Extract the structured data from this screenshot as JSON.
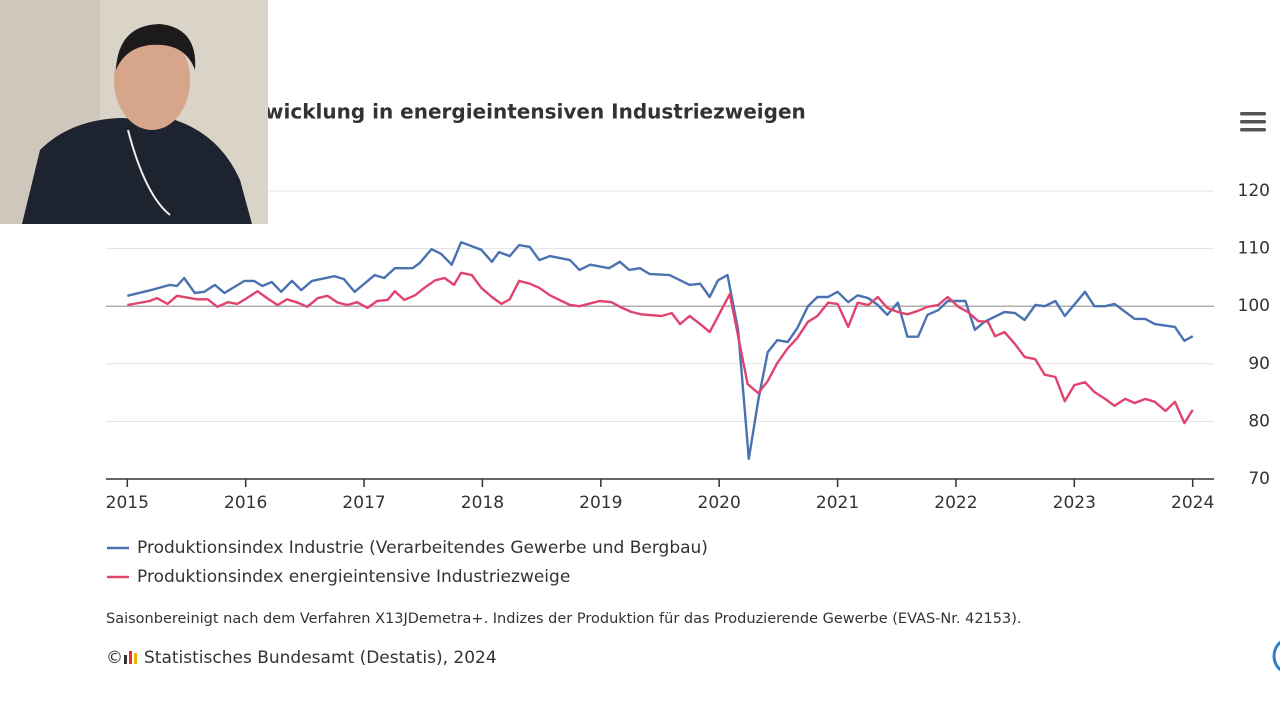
{
  "chart_data": {
    "type": "line",
    "title": "wicklung in energieintensiven Industriezweigen",
    "xlim": [
      2014.82,
      2024.18
    ],
    "xticks": [
      2015,
      2016,
      2017,
      2018,
      2019,
      2020,
      2021,
      2022,
      2023,
      2024
    ],
    "ylim": [
      70,
      120
    ],
    "yticks": [
      70,
      80,
      90,
      100,
      110,
      120
    ],
    "grid": true,
    "reference_line": 100,
    "series": [
      {
        "name": "Produktionsindex Industrie (Verarbeitendes Gewerbe und Bergbau)",
        "color": "#4a72b0",
        "x": [
          2015.0,
          2015.2,
          2015.36,
          2015.42,
          2015.48,
          2015.57,
          2015.65,
          2015.74,
          2015.82,
          2015.99,
          2016.07,
          2016.14,
          2016.22,
          2016.3,
          2016.39,
          2016.47,
          2016.56,
          2016.75,
          2016.83,
          2016.92,
          2017.09,
          2017.17,
          2017.26,
          2017.41,
          2017.47,
          2017.57,
          2017.65,
          2017.74,
          2017.82,
          2017.99,
          2018.08,
          2018.14,
          2018.23,
          2018.31,
          2018.4,
          2018.48,
          2018.57,
          2018.74,
          2018.82,
          2018.91,
          2019.07,
          2019.16,
          2019.24,
          2019.33,
          2019.41,
          2019.58,
          2019.75,
          2019.84,
          2019.92,
          2019.99,
          2020.07,
          2020.16,
          2020.25,
          2020.33,
          2020.41,
          2020.49,
          2020.58,
          2020.66,
          2020.75,
          2020.83,
          2020.92,
          2021.0,
          2021.09,
          2021.17,
          2021.26,
          2021.34,
          2021.42,
          2021.51,
          2021.59,
          2021.68,
          2021.76,
          2021.85,
          2021.93,
          2022.08,
          2022.16,
          2022.24,
          2022.41,
          2022.5,
          2022.58,
          2022.67,
          2022.75,
          2022.84,
          2022.92,
          2023.09,
          2023.17,
          2023.26,
          2023.34,
          2023.51,
          2023.6,
          2023.68,
          2023.85,
          2023.93,
          2024.0
        ],
        "values": [
          101.8,
          102.8,
          103.7,
          103.5,
          104.9,
          102.3,
          102.5,
          103.7,
          102.3,
          104.4,
          104.4,
          103.5,
          104.2,
          102.5,
          104.4,
          102.8,
          104.4,
          105.2,
          104.7,
          102.5,
          105.4,
          104.9,
          106.6,
          106.6,
          107.5,
          109.9,
          109.1,
          107.2,
          111.1,
          109.8,
          107.7,
          109.4,
          108.7,
          110.6,
          110.3,
          108.0,
          108.7,
          108.0,
          106.3,
          107.2,
          106.6,
          107.7,
          106.3,
          106.6,
          105.6,
          105.4,
          103.7,
          103.9,
          101.6,
          104.5,
          105.4,
          95.9,
          73.5,
          83.7,
          92.0,
          94.1,
          93.8,
          96.2,
          100.0,
          101.6,
          101.6,
          102.5,
          100.7,
          101.9,
          101.4,
          100.2,
          98.5,
          100.6,
          94.7,
          94.7,
          98.5,
          99.3,
          100.9,
          100.9,
          95.9,
          97.3,
          99.0,
          98.8,
          97.6,
          100.2,
          100.0,
          100.9,
          98.3,
          102.5,
          100.0,
          100.0,
          100.4,
          97.8,
          97.8,
          96.9,
          96.4,
          94.0,
          94.8
        ]
      },
      {
        "name": "Produktionsindex energieintensive Industriezweige",
        "color": "#e0446e",
        "x": [
          2015.0,
          2015.19,
          2015.25,
          2015.34,
          2015.42,
          2015.59,
          2015.68,
          2015.76,
          2015.85,
          2015.93,
          2016.01,
          2016.1,
          2016.18,
          2016.27,
          2016.35,
          2016.44,
          2016.52,
          2016.61,
          2016.69,
          2016.78,
          2016.86,
          2016.94,
          2017.03,
          2017.11,
          2017.2,
          2017.26,
          2017.34,
          2017.43,
          2017.51,
          2017.6,
          2017.68,
          2017.76,
          2017.82,
          2017.91,
          2017.99,
          2018.08,
          2018.16,
          2018.23,
          2018.31,
          2018.4,
          2018.48,
          2018.57,
          2018.65,
          2018.74,
          2018.82,
          2018.99,
          2019.09,
          2019.18,
          2019.26,
          2019.34,
          2019.51,
          2019.6,
          2019.67,
          2019.75,
          2019.84,
          2019.92,
          2020.09,
          2020.24,
          2020.33,
          2020.41,
          2020.49,
          2020.58,
          2020.66,
          2020.75,
          2020.83,
          2020.92,
          2021.0,
          2021.09,
          2021.17,
          2021.26,
          2021.34,
          2021.42,
          2021.51,
          2021.59,
          2021.68,
          2021.76,
          2021.85,
          2021.93,
          2022.02,
          2022.1,
          2022.19,
          2022.27,
          2022.33,
          2022.41,
          2022.5,
          2022.58,
          2022.67,
          2022.75,
          2022.84,
          2022.92,
          2023.0,
          2023.09,
          2023.17,
          2023.26,
          2023.34,
          2023.43,
          2023.51,
          2023.6,
          2023.68,
          2023.77,
          2023.85,
          2023.93,
          2024.0
        ],
        "values": [
          100.2,
          100.9,
          101.4,
          100.4,
          101.8,
          101.2,
          101.2,
          99.9,
          100.7,
          100.4,
          101.4,
          102.6,
          101.4,
          100.2,
          101.2,
          100.6,
          99.9,
          101.4,
          101.8,
          100.6,
          100.2,
          100.7,
          99.7,
          100.9,
          101.1,
          102.6,
          101.1,
          101.9,
          103.2,
          104.5,
          104.9,
          103.7,
          105.8,
          105.4,
          103.2,
          101.6,
          100.4,
          101.2,
          104.4,
          103.9,
          103.2,
          101.9,
          101.1,
          100.2,
          100.0,
          100.9,
          100.7,
          99.7,
          99.0,
          98.6,
          98.3,
          98.8,
          96.9,
          98.3,
          96.9,
          95.5,
          102.1,
          86.5,
          84.9,
          87.0,
          90.1,
          92.7,
          94.5,
          97.3,
          98.3,
          100.6,
          100.4,
          96.4,
          100.6,
          100.2,
          101.6,
          99.7,
          99.0,
          98.6,
          99.2,
          99.9,
          100.2,
          101.6,
          99.9,
          99.0,
          97.4,
          97.3,
          94.8,
          95.5,
          93.4,
          91.2,
          90.8,
          88.1,
          87.7,
          83.5,
          86.3,
          86.8,
          85.1,
          83.9,
          82.7,
          83.9,
          83.2,
          83.9,
          83.4,
          81.8,
          83.4,
          79.7,
          82.0
        ]
      }
    ],
    "note": "Saisonbereinigt nach dem Verfahren X13JDemetra+. Indizes der Produktion für das Produzierende Gewerbe (EVAS-Nr. 42153).",
    "copyright": "©",
    "source": "Statistisches Bundesamt (Destatis), 2024"
  }
}
